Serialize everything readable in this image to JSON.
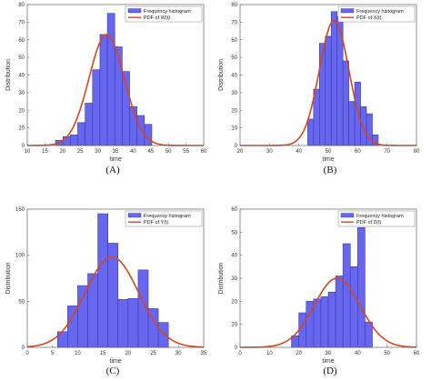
{
  "colors": {
    "bar_fill": "#6666ee",
    "bar_stroke": "#3a3ab0",
    "pdf_line": "#d9461b",
    "axis": "#666666"
  },
  "chart_data": [
    {
      "type": "bar",
      "panel_label": "(A)",
      "xlabel": "time",
      "ylabel": "Distribution",
      "xlim": [
        10,
        60
      ],
      "ylim": [
        0,
        80
      ],
      "xticks": [
        10,
        15,
        20,
        25,
        30,
        35,
        40,
        45,
        50,
        55,
        60
      ],
      "yticks": [
        0,
        10,
        20,
        30,
        40,
        50,
        60,
        70,
        80
      ],
      "legend_position": "top-right",
      "bins": [
        {
          "x0": 18.0,
          "x1": 20.1,
          "value": 3
        },
        {
          "x0": 20.1,
          "x1": 22.2,
          "value": 5
        },
        {
          "x0": 22.2,
          "x1": 24.3,
          "value": 6
        },
        {
          "x0": 24.3,
          "x1": 26.4,
          "value": 13
        },
        {
          "x0": 26.4,
          "x1": 28.5,
          "value": 24
        },
        {
          "x0": 28.5,
          "x1": 30.6,
          "value": 43
        },
        {
          "x0": 30.6,
          "x1": 32.7,
          "value": 63
        },
        {
          "x0": 32.7,
          "x1": 34.8,
          "value": 75
        },
        {
          "x0": 34.8,
          "x1": 36.9,
          "value": 56
        },
        {
          "x0": 36.9,
          "x1": 39.0,
          "value": 42
        },
        {
          "x0": 39.0,
          "x1": 41.1,
          "value": 22
        },
        {
          "x0": 41.1,
          "x1": 43.2,
          "value": 17
        },
        {
          "x0": 43.2,
          "x1": 45.3,
          "value": 12
        }
      ],
      "pdf": {
        "mean": 32.5,
        "sd": 5.0,
        "peak": 63
      },
      "series": [
        {
          "name": "Frequency histogram",
          "kind": "bar"
        },
        {
          "name": "PDF of W(t)",
          "kind": "line"
        }
      ]
    },
    {
      "type": "bar",
      "panel_label": "(B)",
      "xlabel": "time",
      "ylabel": "Distribution",
      "xlim": [
        20,
        80
      ],
      "ylim": [
        0,
        80
      ],
      "xticks": [
        20,
        30,
        40,
        50,
        60,
        70,
        80
      ],
      "yticks": [
        0,
        10,
        20,
        30,
        40,
        50,
        60,
        70,
        80
      ],
      "legend_position": "top-right",
      "bins": [
        {
          "x0": 43.0,
          "x1": 45.0,
          "value": 15
        },
        {
          "x0": 45.0,
          "x1": 47.0,
          "value": 32
        },
        {
          "x0": 47.0,
          "x1": 49.0,
          "value": 58
        },
        {
          "x0": 49.0,
          "x1": 51.0,
          "value": 62
        },
        {
          "x0": 51.0,
          "x1": 53.0,
          "value": 76
        },
        {
          "x0": 53.0,
          "x1": 55.0,
          "value": 73
        },
        {
          "x0": 55.0,
          "x1": 57.0,
          "value": 48
        },
        {
          "x0": 57.0,
          "x1": 59.0,
          "value": 25
        },
        {
          "x0": 59.0,
          "x1": 61.0,
          "value": 36
        },
        {
          "x0": 61.0,
          "x1": 63.0,
          "value": 22
        },
        {
          "x0": 63.0,
          "x1": 65.0,
          "value": 18
        },
        {
          "x0": 65.0,
          "x1": 67.0,
          "value": 6
        }
      ],
      "pdf": {
        "mean": 52.0,
        "sd": 5.0,
        "peak": 71
      },
      "series": [
        {
          "name": "Frequency histogram",
          "kind": "bar"
        },
        {
          "name": "PDF of X(t)",
          "kind": "line"
        }
      ]
    },
    {
      "type": "bar",
      "panel_label": "(C)",
      "xlabel": "time",
      "ylabel": "Distribution",
      "xlim": [
        0,
        35
      ],
      "ylim": [
        0,
        150
      ],
      "xticks": [
        0,
        5,
        10,
        15,
        20,
        25,
        30,
        35
      ],
      "yticks": [
        0,
        50,
        100,
        150
      ],
      "legend_position": "top-right",
      "bins": [
        {
          "x0": 6.0,
          "x1": 8.0,
          "value": 17
        },
        {
          "x0": 8.0,
          "x1": 10.0,
          "value": 45
        },
        {
          "x0": 10.0,
          "x1": 12.0,
          "value": 67
        },
        {
          "x0": 12.0,
          "x1": 14.0,
          "value": 80
        },
        {
          "x0": 14.0,
          "x1": 16.0,
          "value": 145
        },
        {
          "x0": 16.0,
          "x1": 18.0,
          "value": 113
        },
        {
          "x0": 18.0,
          "x1": 20.0,
          "value": 52
        },
        {
          "x0": 20.0,
          "x1": 22.0,
          "value": 53
        },
        {
          "x0": 22.0,
          "x1": 24.0,
          "value": 84
        },
        {
          "x0": 24.0,
          "x1": 26.0,
          "value": 42
        },
        {
          "x0": 26.0,
          "x1": 28.0,
          "value": 27
        }
      ],
      "pdf": {
        "mean": 16.8,
        "sd": 5.3,
        "peak": 98
      },
      "series": [
        {
          "name": "Frequency histogram",
          "kind": "bar"
        },
        {
          "name": "PDF of Y(t)",
          "kind": "line"
        }
      ]
    },
    {
      "type": "bar",
      "panel_label": "(D)",
      "xlabel": "time",
      "ylabel": "Distribution",
      "xlim": [
        0,
        60
      ],
      "ylim": [
        0,
        60
      ],
      "xticks": [
        0,
        10,
        20,
        30,
        40,
        50,
        60
      ],
      "yticks": [
        0,
        10,
        20,
        30,
        40,
        50,
        60
      ],
      "legend_position": "top-right",
      "bins": [
        {
          "x0": 17.5,
          "x1": 20.0,
          "value": 5
        },
        {
          "x0": 20.0,
          "x1": 22.5,
          "value": 15
        },
        {
          "x0": 22.5,
          "x1": 25.0,
          "value": 20
        },
        {
          "x0": 25.0,
          "x1": 27.5,
          "value": 21
        },
        {
          "x0": 27.5,
          "x1": 30.0,
          "value": 22
        },
        {
          "x0": 30.0,
          "x1": 32.5,
          "value": 24
        },
        {
          "x0": 32.5,
          "x1": 35.0,
          "value": 31
        },
        {
          "x0": 35.0,
          "x1": 37.5,
          "value": 45
        },
        {
          "x0": 37.5,
          "x1": 40.0,
          "value": 35
        },
        {
          "x0": 40.0,
          "x1": 42.5,
          "value": 52
        },
        {
          "x0": 42.5,
          "x1": 45.0,
          "value": 11
        }
      ],
      "pdf": {
        "mean": 33.0,
        "sd": 7.8,
        "peak": 30
      },
      "series": [
        {
          "name": "Frequency histogram",
          "kind": "bar"
        },
        {
          "name": "PDF of Z(t)",
          "kind": "line"
        }
      ]
    }
  ]
}
